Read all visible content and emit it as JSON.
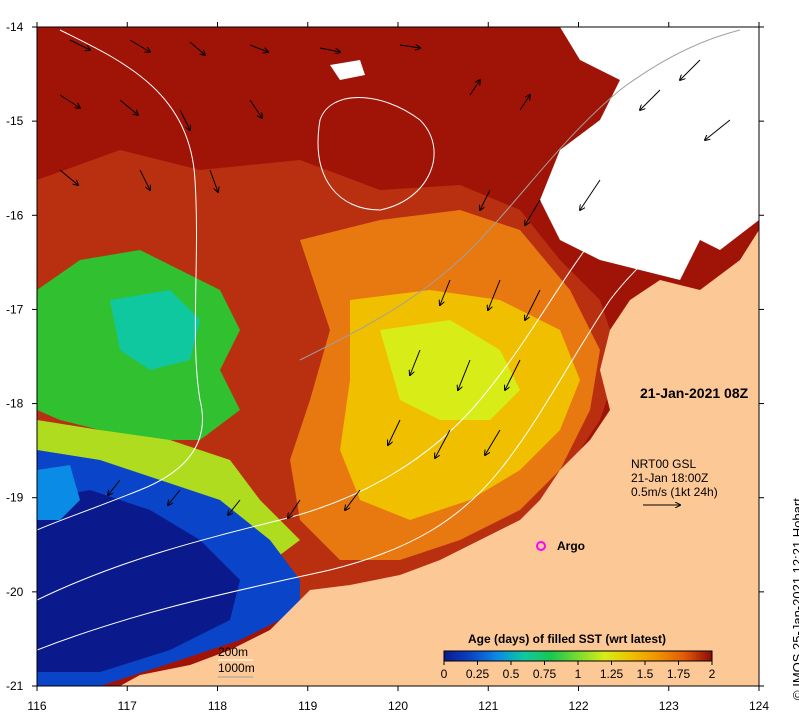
{
  "map": {
    "timestamp": "21-Jan-2021 08Z",
    "currents_info": [
      "NRT00 GSL",
      "21-Jan 18:00Z",
      "0.5m/s (1kt 24h)"
    ],
    "marker_label": "Argo",
    "isobaths": [
      "200m",
      "1000m"
    ],
    "credit": "IMOS 25-Jan-2021 12:21 Hobart",
    "copyright_symbol": "©",
    "lon_ticks": [
      "116",
      "117",
      "118",
      "119",
      "120",
      "121",
      "122",
      "123",
      "124"
    ],
    "lat_ticks": [
      "-14",
      "-15",
      "-16",
      "-17",
      "-18",
      "-19",
      "-20",
      "-21"
    ],
    "lon_range": [
      116,
      124
    ],
    "lat_range": [
      -21,
      -14
    ]
  },
  "colorbar": {
    "title": "Age (days) of filled SST (wrt latest)",
    "ticks": [
      "0",
      "0.25",
      "0.5",
      "0.75",
      "1",
      "1.25",
      "1.5",
      "1.75",
      "2"
    ],
    "colors": [
      "#0a1a8c",
      "#0a44c8",
      "#0a8ce6",
      "#10c8a0",
      "#18c850",
      "#78dc30",
      "#d8ec18",
      "#f0c000",
      "#f09000",
      "#e05808",
      "#b82808",
      "#8c0a0a"
    ]
  },
  "colors": {
    "land": "#fcc896",
    "no_data": "#ffffff",
    "marker": "#ff00ff"
  }
}
